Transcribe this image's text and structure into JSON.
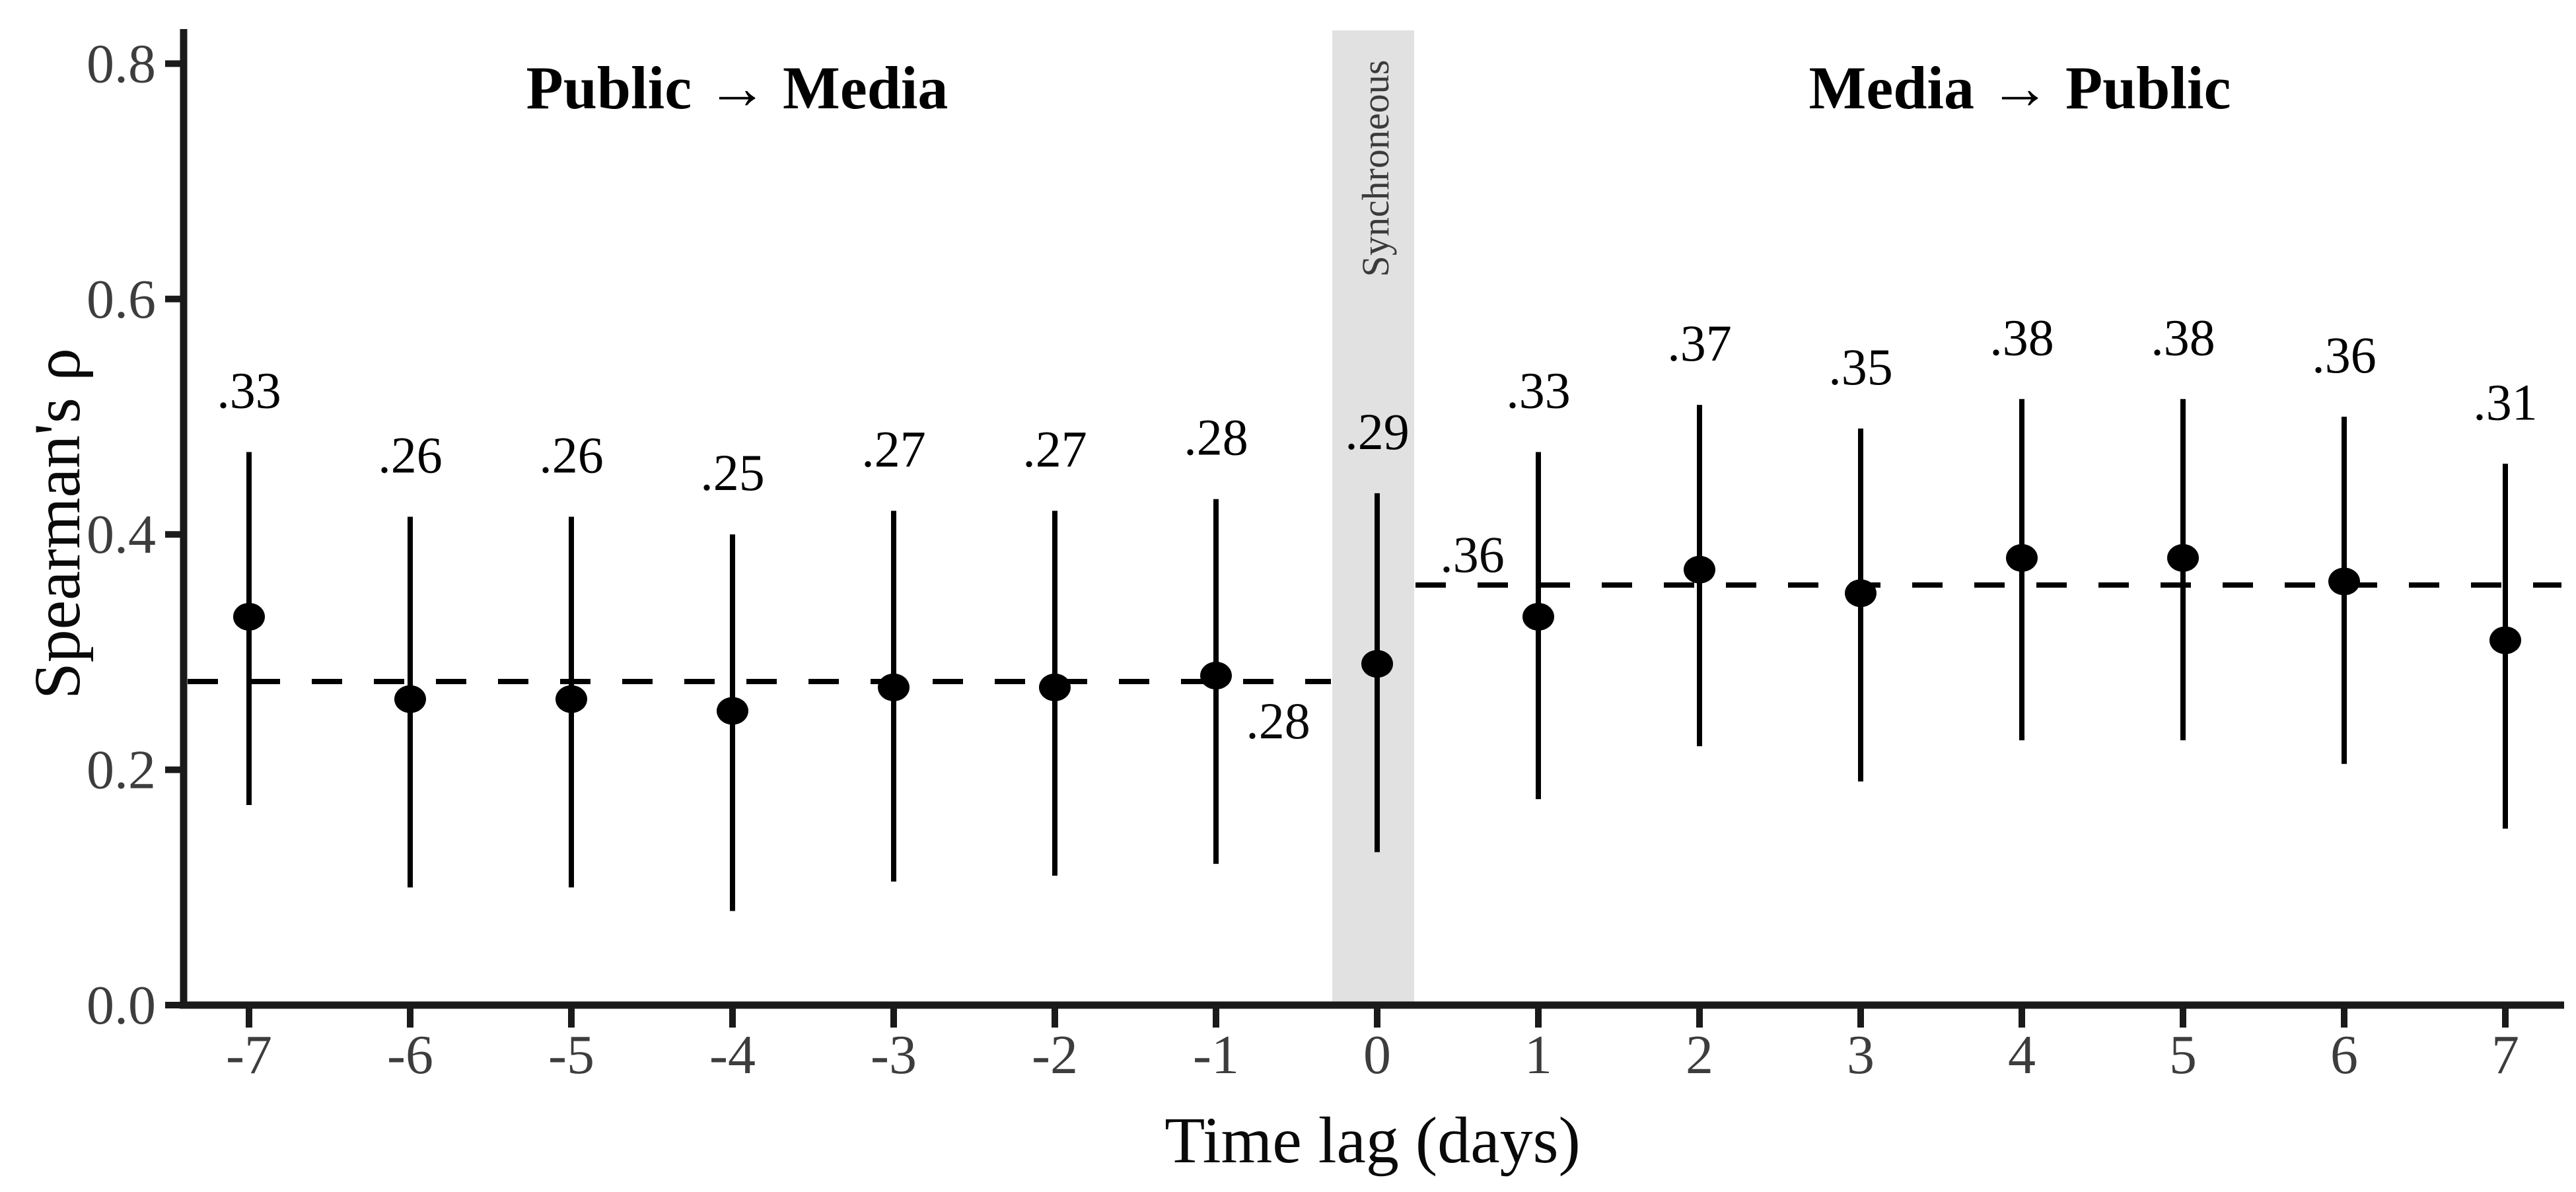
{
  "page": {
    "background_color": "#ffffff",
    "accent_black": "#000000",
    "axis_color": "#1a1a1a",
    "tick_text_color": "#3d3d3d"
  },
  "chart_data": {
    "type": "scatter",
    "subtype": "point-estimates-with-error-bars",
    "title_left": "Public → Media",
    "title_right": "Media → Public",
    "xlabel": "Time lag (days)",
    "ylabel": "Spearman's ρ",
    "ylim": [
      0.0,
      0.83
    ],
    "grid": "off",
    "legend": "none",
    "y_ticks": [
      "0.0",
      "0.2",
      "0.4",
      "0.6",
      "0.8"
    ],
    "y_tick_values": [
      0.0,
      0.2,
      0.4,
      0.6,
      0.8
    ],
    "x_ticks": [
      "-7",
      "-6",
      "-5",
      "-4",
      "-3",
      "-2",
      "-1",
      "0",
      "1",
      "2",
      "3",
      "4",
      "5",
      "6",
      "7"
    ],
    "x_tick_values": [
      -7,
      -6,
      -5,
      -4,
      -3,
      -2,
      -1,
      0,
      1,
      2,
      3,
      4,
      5,
      6,
      7
    ],
    "sync_band": {
      "label": "Synchroneous",
      "x_center": 0,
      "color": "#e1e1e1"
    },
    "points": [
      {
        "lag": -7,
        "value": 0.33,
        "label": ".33",
        "ci_low": 0.17,
        "ci_high": 0.47
      },
      {
        "lag": -6,
        "value": 0.26,
        "label": ".26",
        "ci_low": 0.1,
        "ci_high": 0.415
      },
      {
        "lag": -5,
        "value": 0.26,
        "label": ".26",
        "ci_low": 0.1,
        "ci_high": 0.415
      },
      {
        "lag": -4,
        "value": 0.25,
        "label": ".25",
        "ci_low": 0.08,
        "ci_high": 0.4
      },
      {
        "lag": -3,
        "value": 0.27,
        "label": ".27",
        "ci_low": 0.105,
        "ci_high": 0.42
      },
      {
        "lag": -2,
        "value": 0.27,
        "label": ".27",
        "ci_low": 0.11,
        "ci_high": 0.42
      },
      {
        "lag": -1,
        "value": 0.28,
        "label": ".28",
        "ci_low": 0.12,
        "ci_high": 0.43
      },
      {
        "lag": 0,
        "value": 0.29,
        "label": ".29",
        "ci_low": 0.13,
        "ci_high": 0.435
      },
      {
        "lag": 1,
        "value": 0.33,
        "label": ".33",
        "ci_low": 0.175,
        "ci_high": 0.47
      },
      {
        "lag": 2,
        "value": 0.37,
        "label": ".37",
        "ci_low": 0.22,
        "ci_high": 0.51
      },
      {
        "lag": 3,
        "value": 0.35,
        "label": ".35",
        "ci_low": 0.19,
        "ci_high": 0.49
      },
      {
        "lag": 4,
        "value": 0.38,
        "label": ".38",
        "ci_low": 0.225,
        "ci_high": 0.515
      },
      {
        "lag": 5,
        "value": 0.38,
        "label": ".38",
        "ci_low": 0.225,
        "ci_high": 0.515
      },
      {
        "lag": 6,
        "value": 0.36,
        "label": ".36",
        "ci_low": 0.205,
        "ci_high": 0.5
      },
      {
        "lag": 7,
        "value": 0.31,
        "label": ".31",
        "ci_low": 0.15,
        "ci_high": 0.46
      }
    ],
    "reference_lines": [
      {
        "region": "public-to-media",
        "value": 0.275,
        "label": ".28"
      },
      {
        "region": "media-to-public",
        "value": 0.357,
        "label": ".36"
      }
    ]
  }
}
